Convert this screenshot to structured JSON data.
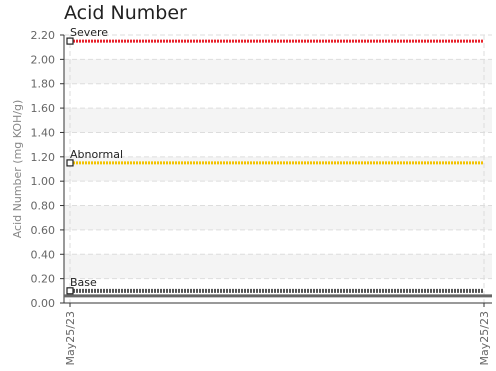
{
  "chart_data": {
    "type": "line",
    "title": "Acid Number",
    "ylabel": "Acid Number (mg KOH/g)",
    "xlabel": "",
    "ylim": [
      0,
      2.2
    ],
    "y_ticks": [
      "0.00",
      "0.20",
      "0.40",
      "0.60",
      "0.80",
      "1.00",
      "1.20",
      "1.40",
      "1.60",
      "1.80",
      "2.00",
      "2.20"
    ],
    "x_ticks": [
      "May25/23",
      "May25/23"
    ],
    "grid": true,
    "series": [
      {
        "name": "Severe",
        "values": [
          2.15,
          2.15
        ],
        "color": "#e8212b"
      },
      {
        "name": "Abnormal",
        "values": [
          1.15,
          1.15
        ],
        "color": "#f2c200"
      },
      {
        "name": "Base",
        "values": [
          0.1,
          0.1
        ],
        "color": "#555555"
      }
    ]
  }
}
